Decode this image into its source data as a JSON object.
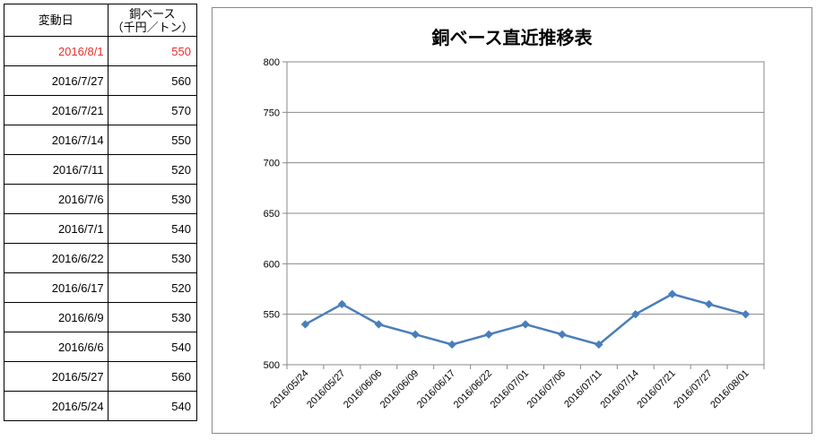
{
  "table": {
    "headers": {
      "date": "変動日",
      "price_line1": "銅ベース",
      "price_line2": "（千円／トン）"
    },
    "rows": [
      {
        "date": "2016/8/1",
        "value": "550",
        "highlight": true
      },
      {
        "date": "2016/7/27",
        "value": "560"
      },
      {
        "date": "2016/7/21",
        "value": "570"
      },
      {
        "date": "2016/7/14",
        "value": "550"
      },
      {
        "date": "2016/7/11",
        "value": "520"
      },
      {
        "date": "2016/7/6",
        "value": "530"
      },
      {
        "date": "2016/7/1",
        "value": "540"
      },
      {
        "date": "2016/6/22",
        "value": "530"
      },
      {
        "date": "2016/6/17",
        "value": "520"
      },
      {
        "date": "2016/6/9",
        "value": "530"
      },
      {
        "date": "2016/6/6",
        "value": "540"
      },
      {
        "date": "2016/5/27",
        "value": "560"
      },
      {
        "date": "2016/5/24",
        "value": "540"
      }
    ],
    "highlight_color": "#e5302b"
  },
  "chart_data": {
    "type": "line",
    "title": "銅ベース直近推移表",
    "categories": [
      "2016/05/24",
      "2016/05/27",
      "2016/06/06",
      "2016/06/09",
      "2016/06/17",
      "2016/06/22",
      "2016/07/01",
      "2016/07/06",
      "2016/07/11",
      "2016/07/14",
      "2016/07/21",
      "2016/07/27",
      "2016/08/01"
    ],
    "series": [
      {
        "values": [
          540,
          560,
          540,
          530,
          520,
          530,
          540,
          530,
          520,
          550,
          570,
          560,
          550
        ]
      }
    ],
    "ylim": [
      500,
      800
    ],
    "yticks": [
      500,
      550,
      600,
      650,
      700,
      750,
      800
    ],
    "grid": true,
    "legend": "none",
    "line_color": "#4a7ebb"
  }
}
